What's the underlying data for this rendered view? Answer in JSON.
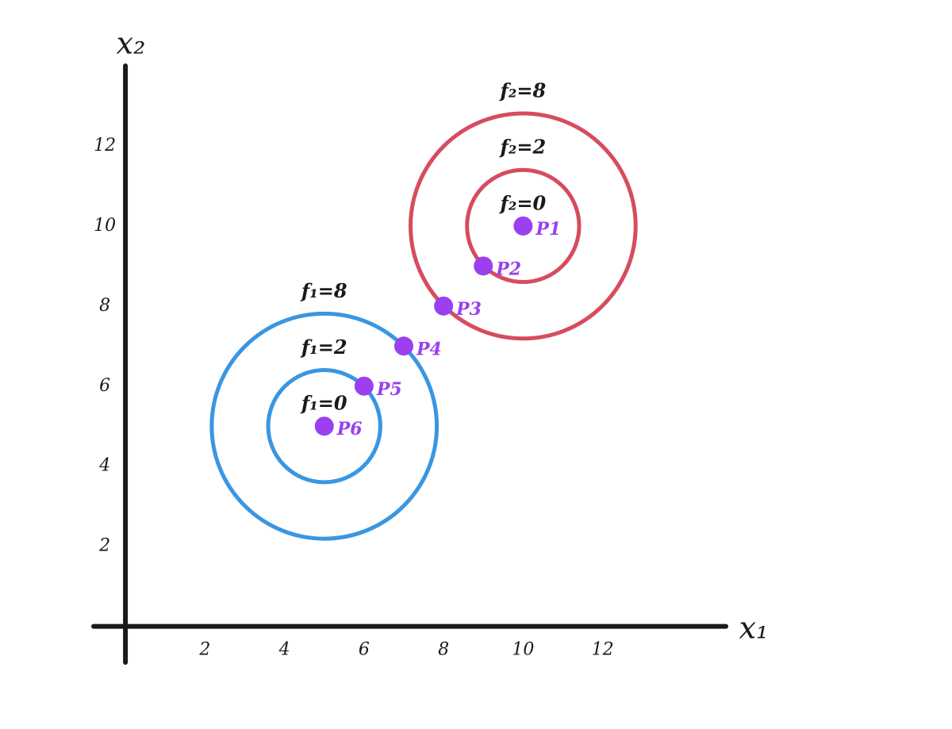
{
  "chart_data": {
    "type": "scatter",
    "x_label": "x₁",
    "y_label": "x₂",
    "xlim": [
      -0.8,
      15.1
    ],
    "ylim": [
      -0.9,
      14
    ],
    "xticks": [
      2,
      4,
      6,
      8,
      10,
      12
    ],
    "yticks": [
      2,
      4,
      6,
      8,
      10,
      12
    ],
    "x": [
      10,
      9,
      8,
      7,
      6,
      5
    ],
    "y": [
      10,
      9,
      8,
      7,
      6,
      5
    ],
    "point_labels": [
      "P1",
      "P2",
      "P3",
      "P4",
      "P5",
      "P6"
    ],
    "point_color": "#9b3ff0",
    "contours": [
      {
        "label": "f₂=8",
        "cx": 10,
        "cy": 10,
        "radius": 2.83,
        "color": "#d64c5e"
      },
      {
        "label": "f₂=2",
        "cx": 10,
        "cy": 10,
        "radius": 1.41,
        "color": "#d64c5e"
      },
      {
        "label": "f₂=0",
        "cx": 10,
        "cy": 10,
        "radius": 0,
        "color": "#d64c5e"
      },
      {
        "label": "f₁=8",
        "cx": 5,
        "cy": 5,
        "radius": 2.83,
        "color": "#3a96e2"
      },
      {
        "label": "f₁=2",
        "cx": 5,
        "cy": 5,
        "radius": 1.41,
        "color": "#3a96e2"
      },
      {
        "label": "f₁=0",
        "cx": 5,
        "cy": 5,
        "radius": 0,
        "color": "#3a96e2"
      }
    ]
  }
}
